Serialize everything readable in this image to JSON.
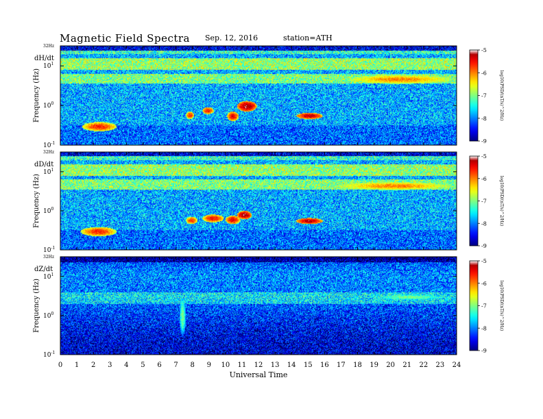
{
  "header": {
    "title": "Magnetic  Field  Spectra",
    "date": "Sep. 12, 2016",
    "station": "station=ATH"
  },
  "chart_data": {
    "type": "heatmap",
    "xlabel": "Universal Time",
    "xlim": [
      0,
      24
    ],
    "x_ticks": [
      "0",
      "1",
      "2",
      "3",
      "4",
      "5",
      "6",
      "7",
      "8",
      "9",
      "10",
      "11",
      "12",
      "13",
      "14",
      "15",
      "16",
      "17",
      "18",
      "19",
      "20",
      "21",
      "22",
      "23",
      "24"
    ],
    "panels": [
      {
        "name": "dH/dt",
        "ylabel": "Frequency  (Hz)",
        "top_label": "32Hz",
        "y_ticks": [
          {
            "base": "10",
            "exp": "1",
            "value": 10
          },
          {
            "base": "10",
            "exp": "0",
            "value": 1
          },
          {
            "base": "10",
            "exp": "-1",
            "value": 0.1
          }
        ],
        "colorbar": {
          "label": "log10(PSD/(nT/s)^2/Hz)",
          "ticks": [
            "-5",
            "-6",
            "-7",
            "-8",
            "-9"
          ],
          "range": [
            -9,
            -5
          ]
        },
        "features": [
          {
            "t0": 1.3,
            "t1": 3.4,
            "f0": 0.22,
            "f1": 0.38,
            "level": -5.6
          },
          {
            "t0": 7.6,
            "t1": 8.1,
            "f0": 0.45,
            "f1": 0.7,
            "level": -5.6
          },
          {
            "t0": 8.6,
            "t1": 9.3,
            "f0": 0.6,
            "f1": 0.9,
            "level": -5.5
          },
          {
            "t0": 10.1,
            "t1": 10.8,
            "f0": 0.4,
            "f1": 0.7,
            "level": -5.4
          },
          {
            "t0": 10.7,
            "t1": 11.9,
            "f0": 0.7,
            "f1": 1.3,
            "level": -5.1
          },
          {
            "t0": 14.3,
            "t1": 15.9,
            "f0": 0.45,
            "f1": 0.65,
            "level": -5.2
          },
          {
            "t0": 17.3,
            "t1": 23.8,
            "f0": 3.5,
            "f1": 6.0,
            "level": -6.0
          }
        ]
      },
      {
        "name": "dD/dt",
        "ylabel": "Frequency  (Hz)",
        "top_label": "32Hz",
        "y_ticks": [
          {
            "base": "10",
            "exp": "1",
            "value": 10
          },
          {
            "base": "10",
            "exp": "0",
            "value": 1
          },
          {
            "base": "10",
            "exp": "-1",
            "value": 0.1
          }
        ],
        "colorbar": {
          "label": "log10(PSD/(nT/s)^2/Hz)",
          "ticks": [
            "-5",
            "-6",
            "-7",
            "-8",
            "-9"
          ],
          "range": [
            -9,
            -5
          ]
        },
        "features": [
          {
            "t0": 1.2,
            "t1": 3.4,
            "f0": 0.22,
            "f1": 0.38,
            "level": -5.6
          },
          {
            "t0": 7.6,
            "t1": 8.3,
            "f0": 0.45,
            "f1": 0.7,
            "level": -5.6
          },
          {
            "t0": 8.6,
            "t1": 9.9,
            "f0": 0.5,
            "f1": 0.8,
            "level": -5.5
          },
          {
            "t0": 10.0,
            "t1": 10.9,
            "f0": 0.45,
            "f1": 0.75,
            "level": -5.4
          },
          {
            "t0": 10.7,
            "t1": 11.6,
            "f0": 0.6,
            "f1": 1.0,
            "level": -5.1
          },
          {
            "t0": 14.3,
            "t1": 15.9,
            "f0": 0.45,
            "f1": 0.65,
            "level": -5.2
          },
          {
            "t0": 16.7,
            "t1": 23.8,
            "f0": 3.4,
            "f1": 5.5,
            "level": -6.0
          }
        ]
      },
      {
        "name": "dZ/dt",
        "ylabel": "Frequency  (Hz)",
        "top_label": "32Hz",
        "y_ticks": [
          {
            "base": "10",
            "exp": "1",
            "value": 10
          },
          {
            "base": "10",
            "exp": "0",
            "value": 1
          },
          {
            "base": "10",
            "exp": "-1",
            "value": 0.1
          }
        ],
        "colorbar": {
          "label": "log10(PSD/(nT/s)^2/Hz)",
          "ticks": [
            "-5",
            "-6",
            "-7",
            "-8",
            "-9"
          ],
          "range": [
            -9,
            -5
          ]
        },
        "features": [
          {
            "t0": 7.2,
            "t1": 7.6,
            "f0": 0.3,
            "f1": 3.0,
            "level": -7.0
          },
          {
            "t0": 19.0,
            "t1": 23.5,
            "f0": 2.5,
            "f1": 3.5,
            "level": -7.0
          }
        ]
      }
    ]
  }
}
